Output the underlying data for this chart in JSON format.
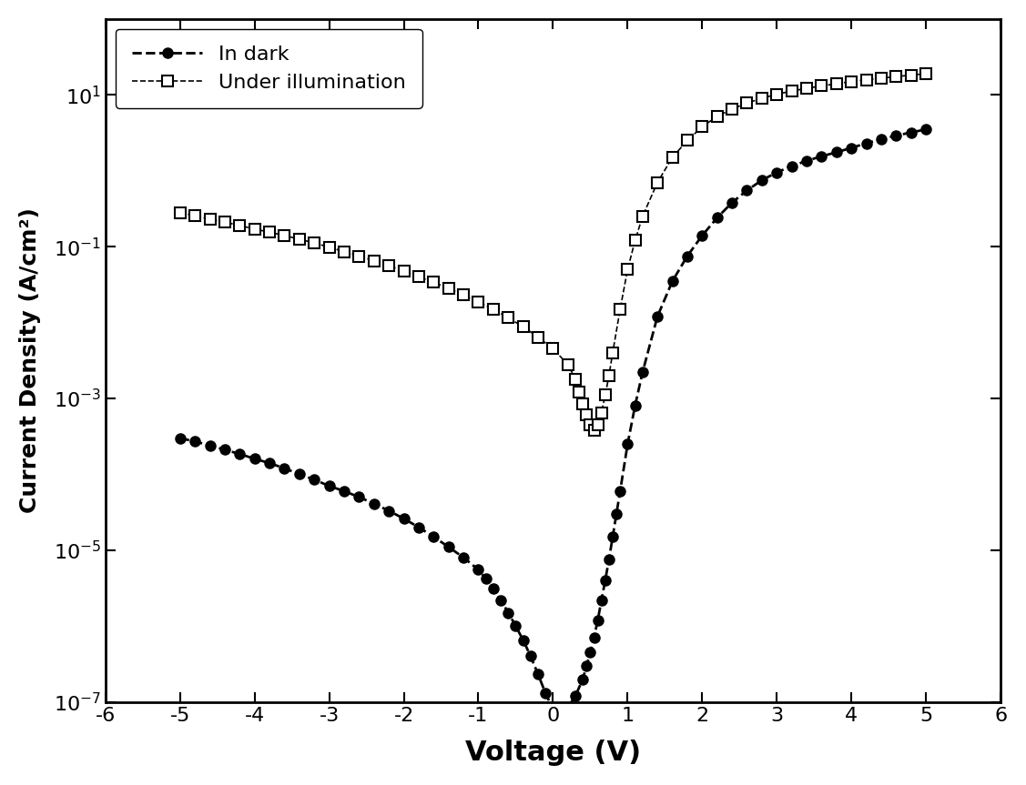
{
  "title": "",
  "xlabel": "Voltage (V)",
  "ylabel": "Current Density (A/cm²)",
  "xlim": [
    -6,
    6
  ],
  "ylim": [
    1e-07,
    100.0
  ],
  "xticks": [
    -6,
    -5,
    -4,
    -3,
    -2,
    -1,
    0,
    1,
    2,
    3,
    4,
    5,
    6
  ],
  "background_color": "#ffffff",
  "legend_labels": [
    "In dark",
    "Under illumination"
  ],
  "dark_color": "#000000",
  "illum_color": "#000000",
  "dark_marker": "o",
  "illum_marker": "s",
  "dark_markersize": 8,
  "illum_markersize": 8,
  "dark_linewidth": 2.0,
  "illum_linewidth": 1.2,
  "xlabel_fontsize": 22,
  "ylabel_fontsize": 18,
  "tick_fontsize": 16,
  "legend_fontsize": 16,
  "dark_v": [
    -5.0,
    -4.8,
    -4.6,
    -4.4,
    -4.2,
    -4.0,
    -3.8,
    -3.6,
    -3.4,
    -3.2,
    -3.0,
    -2.8,
    -2.6,
    -2.4,
    -2.2,
    -2.0,
    -1.8,
    -1.6,
    -1.4,
    -1.2,
    -1.0,
    -0.9,
    -0.8,
    -0.7,
    -0.6,
    -0.5,
    -0.4,
    -0.3,
    -0.2,
    -0.1,
    0.0,
    0.1,
    0.2,
    0.3,
    0.4,
    0.45,
    0.5,
    0.55,
    0.6,
    0.65,
    0.7,
    0.75,
    0.8,
    0.85,
    0.9,
    1.0,
    1.1,
    1.2,
    1.4,
    1.6,
    1.8,
    2.0,
    2.2,
    2.4,
    2.6,
    2.8,
    3.0,
    3.2,
    3.4,
    3.6,
    3.8,
    4.0,
    4.2,
    4.4,
    4.6,
    4.8,
    5.0
  ],
  "dark_j": [
    0.0003,
    0.00027,
    0.00024,
    0.00021,
    0.000185,
    0.00016,
    0.00014,
    0.00012,
    0.0001,
    8.5e-05,
    7e-05,
    6e-05,
    5e-05,
    4.1e-05,
    3.3e-05,
    2.6e-05,
    2e-05,
    1.5e-05,
    1.1e-05,
    8e-06,
    5.5e-06,
    4.2e-06,
    3.1e-06,
    2.2e-06,
    1.5e-06,
    1e-06,
    6.5e-07,
    4e-07,
    2.3e-07,
    1.3e-07,
    8e-08,
    7e-08,
    8.5e-08,
    1.2e-07,
    2e-07,
    3e-07,
    4.5e-07,
    7e-07,
    1.2e-06,
    2.2e-06,
    4e-06,
    7.5e-06,
    1.5e-05,
    3e-05,
    6e-05,
    0.00025,
    0.0008,
    0.0022,
    0.012,
    0.035,
    0.075,
    0.14,
    0.24,
    0.38,
    0.55,
    0.75,
    0.95,
    1.15,
    1.35,
    1.55,
    1.75,
    2.0,
    2.3,
    2.6,
    2.9,
    3.2,
    3.5
  ],
  "illum_v": [
    -5.0,
    -4.8,
    -4.6,
    -4.4,
    -4.2,
    -4.0,
    -3.8,
    -3.6,
    -3.4,
    -3.2,
    -3.0,
    -2.8,
    -2.6,
    -2.4,
    -2.2,
    -2.0,
    -1.8,
    -1.6,
    -1.4,
    -1.2,
    -1.0,
    -0.8,
    -0.6,
    -0.4,
    -0.2,
    0.0,
    0.2,
    0.3,
    0.35,
    0.4,
    0.45,
    0.5,
    0.55,
    0.6,
    0.65,
    0.7,
    0.75,
    0.8,
    0.9,
    1.0,
    1.1,
    1.2,
    1.4,
    1.6,
    1.8,
    2.0,
    2.2,
    2.4,
    2.6,
    2.8,
    3.0,
    3.2,
    3.4,
    3.6,
    3.8,
    4.0,
    4.2,
    4.4,
    4.6,
    4.8,
    5.0
  ],
  "illum_j": [
    0.28,
    0.255,
    0.23,
    0.21,
    0.19,
    0.17,
    0.155,
    0.14,
    0.125,
    0.112,
    0.098,
    0.086,
    0.075,
    0.065,
    0.056,
    0.048,
    0.04,
    0.034,
    0.028,
    0.023,
    0.0185,
    0.015,
    0.0115,
    0.0088,
    0.0064,
    0.0045,
    0.0028,
    0.0018,
    0.0012,
    0.00085,
    0.0006,
    0.00045,
    0.00038,
    0.00045,
    0.00065,
    0.0011,
    0.002,
    0.004,
    0.015,
    0.05,
    0.12,
    0.25,
    0.7,
    1.5,
    2.5,
    3.8,
    5.2,
    6.5,
    7.8,
    9.0,
    10.2,
    11.2,
    12.2,
    13.1,
    14.0,
    15.0,
    15.8,
    16.6,
    17.4,
    18.2,
    19.0
  ]
}
